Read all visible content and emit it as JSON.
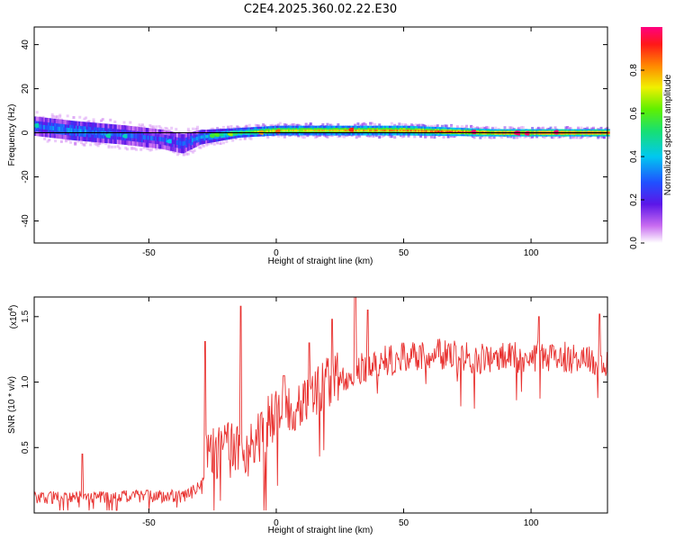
{
  "figure": {
    "title": "C2E4.2025.360.02.22.E30"
  },
  "chart_data": [
    {
      "type": "heatmap",
      "xlabel": "Height of straight line (km)",
      "ylabel": "Frequency (Hz)",
      "xlim": [
        -95,
        130
      ],
      "ylim": [
        -50,
        48
      ],
      "xticks": [
        -50,
        0,
        50,
        100
      ],
      "yticks": [
        -40,
        -20,
        0,
        20,
        40
      ],
      "ridge": [
        {
          "x": -95,
          "f": 3,
          "spread": 4,
          "amp": 0.3
        },
        {
          "x": -80,
          "f": 1,
          "spread": 4,
          "amp": 0.35
        },
        {
          "x": -60,
          "f": -1,
          "spread": 4,
          "amp": 0.3
        },
        {
          "x": -45,
          "f": -3,
          "spread": 4,
          "amp": 0.25
        },
        {
          "x": -37,
          "f": -5,
          "spread": 4,
          "amp": 0.25
        },
        {
          "x": -30,
          "f": -2,
          "spread": 3,
          "amp": 0.35
        },
        {
          "x": -15,
          "f": 0,
          "spread": 2,
          "amp": 0.55
        },
        {
          "x": 0,
          "f": 1,
          "spread": 2,
          "amp": 0.7
        },
        {
          "x": 50,
          "f": 1,
          "spread": 2,
          "amp": 0.8
        },
        {
          "x": 85,
          "f": 0,
          "spread": 1.5,
          "amp": 0.9
        },
        {
          "x": 130,
          "f": 0,
          "spread": 1.5,
          "amp": 0.95
        }
      ],
      "colorbar": {
        "label": "Normalized spectral amplitude",
        "range": [
          0,
          1
        ],
        "ticks": [
          "0.0",
          "0.2",
          "0.4",
          "0.6",
          "0.8"
        ]
      }
    },
    {
      "type": "line",
      "xlabel": "Height of straight line (km)",
      "ylabel": "SNR (10 * v/v)",
      "multiplier_label": "(x10",
      "multiplier_exp": "4",
      "multiplier_close": ")",
      "xlim": [
        -95,
        130
      ],
      "ylim": [
        0,
        1.65
      ],
      "xticks": [
        -50,
        0,
        50,
        100
      ],
      "yticks": [
        0.5,
        1.0,
        1.5
      ],
      "ytick_labels": [
        "0.5",
        "1.0",
        "1.5"
      ],
      "color": "#e8312f",
      "trend": [
        {
          "x": -95,
          "y": 0.12
        },
        {
          "x": -35,
          "y": 0.13
        },
        {
          "x": -30,
          "y": 0.2
        },
        {
          "x": -28,
          "y": 0.45
        },
        {
          "x": -10,
          "y": 0.5
        },
        {
          "x": -5,
          "y": 0.65
        },
        {
          "x": 5,
          "y": 0.8
        },
        {
          "x": 20,
          "y": 1.0
        },
        {
          "x": 40,
          "y": 1.15
        },
        {
          "x": 60,
          "y": 1.22
        },
        {
          "x": 80,
          "y": 1.18
        },
        {
          "x": 110,
          "y": 1.2
        },
        {
          "x": 130,
          "y": 1.15
        }
      ],
      "spikes": [
        {
          "x": -76,
          "y": 0.45
        },
        {
          "x": -28,
          "y": 1.31
        },
        {
          "x": -14,
          "y": 1.58
        },
        {
          "x": 3,
          "y": 1.05
        },
        {
          "x": 13,
          "y": 1.3
        },
        {
          "x": 22,
          "y": 1.48
        },
        {
          "x": 31,
          "y": 1.65
        },
        {
          "x": 36,
          "y": 1.55
        },
        {
          "x": 103,
          "y": 1.5
        },
        {
          "x": 127,
          "y": 1.52
        }
      ]
    }
  ]
}
